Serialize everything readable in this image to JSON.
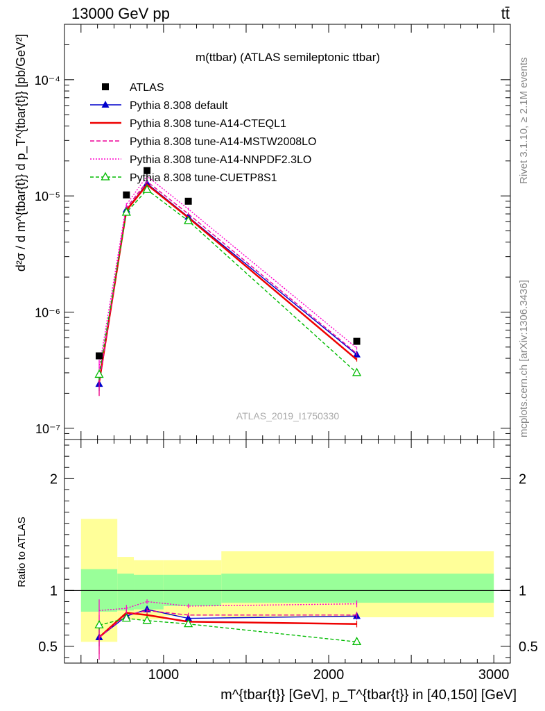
{
  "header": {
    "energy_label": "13000 GeV pp",
    "process_label": "tt̄"
  },
  "side_labels": {
    "rivet": "Rivet 3.1.10, ≥ 2.1M events",
    "mcplots": "mcplots.cern.ch [arXiv:1306.3436]"
  },
  "chart_data": [
    {
      "type": "line",
      "panel": "main",
      "title": "m(ttbar) (ATLAS semileptonic ttbar)",
      "watermark": "ATLAS_2019_I1750330",
      "ylabel": "d²σ / d m^{tbar{t}} d p_T^{tbar{t}} [pb/GeV²]",
      "y_scale": "log",
      "ylim": [
        8e-08,
        0.0003
      ],
      "xlim": [
        400,
        3100
      ],
      "y_ticks": [
        {
          "value": 1e-07,
          "label": "10⁻⁷"
        },
        {
          "value": 1e-06,
          "label": "10⁻⁶"
        },
        {
          "value": 1e-05,
          "label": "10⁻⁵"
        },
        {
          "value": 0.0001,
          "label": "10⁻⁴"
        }
      ],
      "legend_position": "top-left",
      "bins": [
        [
          500,
          720
        ],
        [
          720,
          820
        ],
        [
          820,
          1000
        ],
        [
          1000,
          1350
        ],
        [
          1350,
          3000
        ]
      ],
      "x": [
        610,
        775,
        900,
        1150,
        2170
      ],
      "series": [
        {
          "name": "ATLAS",
          "marker": "square",
          "color": "#000000",
          "values": [
            4.2e-07,
            1.02e-05,
            1.65e-05,
            9e-06,
            5.6e-07
          ]
        },
        {
          "name": "Pythia 8.308 default",
          "marker": "triangle",
          "color": "#0000cc",
          "dash": "solid",
          "values": [
            2.4e-07,
            7.6e-06,
            1.28e-05,
            6.6e-06,
            4.3e-07
          ],
          "errors": [
            3e-08,
            3e-07,
            3e-07,
            2e-07,
            1.5e-08
          ]
        },
        {
          "name": "Pythia 8.308 tune-A14-CTEQL1",
          "color": "#ee0000",
          "dash": "solid",
          "width": 2.5,
          "values": [
            2.5e-07,
            7.5e-06,
            1.25e-05,
            6.5e-06,
            3.9e-07
          ],
          "errors": [
            6e-08,
            3e-07,
            3e-07,
            2e-07,
            1.5e-08
          ]
        },
        {
          "name": "Pythia 8.308 tune-A14-MSTW2008LO",
          "color": "#ee0099",
          "dash": "6,3",
          "values": [
            2.5e-07,
            7.9e-06,
            1.33e-05,
            7e-06,
            4.4e-07
          ],
          "errors": [
            6e-08,
            3e-07,
            3e-07,
            2e-07,
            1.5e-08
          ]
        },
        {
          "name": "Pythia 8.308 tune-A14-NNPDF2.3LO",
          "color": "#ff00cc",
          "dash": "2,2",
          "values": [
            3.3e-07,
            8.4e-06,
            1.48e-05,
            7.7e-06,
            4.9e-07
          ],
          "errors": [
            6e-08,
            3e-07,
            3e-07,
            2e-07,
            1.5e-08
          ]
        },
        {
          "name": "Pythia 8.308 tune-CUETP8S1",
          "marker": "open-triangle",
          "color": "#00bb00",
          "dash": "5,3",
          "values": [
            2.9e-07,
            7.2e-06,
            1.13e-05,
            6.1e-06,
            3e-07
          ],
          "errors": [
            3e-08,
            3e-07,
            3e-07,
            2e-07,
            1.5e-08
          ]
        }
      ]
    },
    {
      "type": "line",
      "panel": "ratio",
      "ylabel": "Ratio to ATLAS",
      "xlabel": "m^{tbar{t}} [GeV], p_T^{tbar{t}} in [40,150] [GeV]",
      "ylim": [
        0.35,
        2.35
      ],
      "xlim": [
        400,
        3100
      ],
      "y_ticks": [
        0.5,
        1,
        2
      ],
      "x_ticks": [
        1000,
        2000,
        3000
      ],
      "bins": [
        [
          500,
          720
        ],
        [
          720,
          820
        ],
        [
          820,
          1000
        ],
        [
          1000,
          1350
        ],
        [
          1350,
          3000
        ]
      ],
      "band_inner": [
        [
          0.81,
          1.19
        ],
        [
          0.82,
          1.15
        ],
        [
          0.83,
          1.14
        ],
        [
          0.86,
          1.14
        ],
        [
          0.89,
          1.15
        ]
      ],
      "band_outer": [
        [
          0.54,
          1.64
        ],
        [
          0.74,
          1.3
        ],
        [
          0.74,
          1.27
        ],
        [
          0.77,
          1.27
        ],
        [
          0.76,
          1.35
        ]
      ],
      "x": [
        610,
        775,
        900,
        1150,
        2170
      ],
      "series": [
        {
          "name": "Pythia 8.308 default",
          "values": [
            0.58,
            0.77,
            0.83,
            0.75,
            0.77
          ],
          "errors": [
            0.08,
            0.03,
            0.02,
            0.02,
            0.03
          ]
        },
        {
          "name": "Pythia 8.308 tune-A14-CTEQL1",
          "values": [
            0.58,
            0.8,
            0.78,
            0.72,
            0.7
          ],
          "errors": [
            0.15,
            0.03,
            0.02,
            0.02,
            0.03
          ]
        },
        {
          "name": "Pythia 8.308 tune-A14-MSTW2008LO",
          "values": [
            0.58,
            0.78,
            0.82,
            0.78,
            0.78
          ],
          "errors": [
            0.2,
            0.03,
            0.02,
            0.02,
            0.03
          ]
        },
        {
          "name": "Pythia 8.308 tune-A14-NNPDF2.3LO",
          "values": [
            0.82,
            0.84,
            0.9,
            0.86,
            0.88
          ],
          "errors": [
            0.1,
            0.03,
            0.02,
            0.02,
            0.03
          ]
        },
        {
          "name": "Pythia 8.308 tune-CUETP8S1",
          "values": [
            0.69,
            0.75,
            0.73,
            0.7,
            0.54
          ],
          "errors": [
            0.04,
            0.02,
            0.02,
            0.02,
            0.03
          ]
        }
      ]
    }
  ]
}
